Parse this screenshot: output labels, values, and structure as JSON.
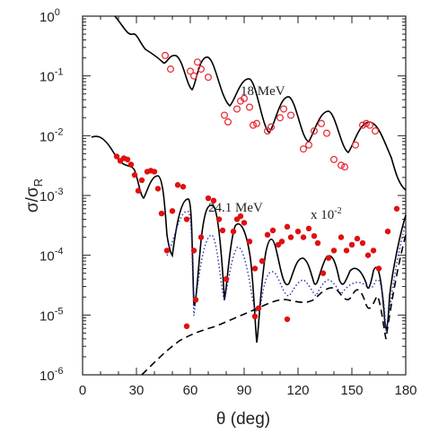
{
  "chart_data": {
    "type": "scatter",
    "xlabel": "θ (deg)",
    "ylabel": "σ/σ",
    "ylabel_sub": "R",
    "xlim": [
      0,
      180
    ],
    "ylim": [
      1e-06,
      1
    ],
    "yscale": "log",
    "grid": false,
    "x_ticks": [
      "0",
      "30",
      "60",
      "90",
      "120",
      "150",
      "180"
    ],
    "y_ticks": [
      {
        "base": "10",
        "exp": "0"
      },
      {
        "base": "10",
        "exp": "-1"
      },
      {
        "base": "10",
        "exp": "-2"
      },
      {
        "base": "10",
        "exp": "-3"
      },
      {
        "base": "10",
        "exp": "-4"
      },
      {
        "base": "10",
        "exp": "-5"
      },
      {
        "base": "10",
        "exp": "-6"
      }
    ],
    "annotations": {
      "upper": "18 MeV",
      "lower": "24.1 MeV",
      "scale": "x 10",
      "scale_exp": "-2"
    },
    "colors": {
      "open_points": "#e8303a",
      "filled_points": "#e01010",
      "fit": "#000000",
      "dotted": "#2233aa"
    },
    "series": [
      {
        "marker": "open-circle",
        "x": [
          46,
          49,
          60,
          62,
          64,
          66,
          70,
          79,
          81,
          86,
          88,
          90,
          93,
          95,
          97,
          103,
          105,
          110,
          112,
          116,
          123,
          126,
          129,
          133,
          136,
          140,
          144,
          146,
          152,
          156,
          158,
          160,
          163
        ],
        "y": [
          0.22,
          0.13,
          0.12,
          0.1,
          0.17,
          0.13,
          0.095,
          0.022,
          0.017,
          0.028,
          0.038,
          0.042,
          0.03,
          0.015,
          0.016,
          0.012,
          0.014,
          0.02,
          0.028,
          0.022,
          0.006,
          0.007,
          0.012,
          0.016,
          0.011,
          0.004,
          0.0032,
          0.003,
          0.007,
          0.015,
          0.016,
          0.015,
          0.012
        ]
      },
      {
        "marker": "filled-circle",
        "x": [
          19,
          21,
          23,
          25,
          27,
          29,
          31,
          33,
          36,
          38,
          40,
          42,
          44,
          47,
          50,
          53,
          56,
          58,
          62,
          63,
          66,
          70,
          73,
          76,
          78,
          80,
          84,
          86,
          88,
          90,
          93,
          96,
          98,
          100,
          103,
          106,
          109,
          111,
          114,
          116,
          120,
          123,
          126,
          129,
          131,
          134,
          137,
          140,
          144,
          147,
          150,
          153,
          156,
          159,
          162,
          165,
          170,
          175
        ],
        "y": [
          0.0045,
          0.0038,
          0.0042,
          0.004,
          0.0033,
          0.0022,
          0.0012,
          0.0018,
          0.0025,
          0.0026,
          0.0025,
          0.0013,
          0.0005,
          0.00012,
          0.00055,
          0.0015,
          0.0014,
          0.0004,
          0.00012,
          1.8e-05,
          0.0002,
          0.0009,
          0.00082,
          0.0004,
          0.00026,
          4e-05,
          0.00025,
          0.0004,
          0.00045,
          0.00035,
          0.00017,
          6e-05,
          1.3e-05,
          8e-05,
          0.00022,
          0.00026,
          0.00015,
          0.00017,
          0.0003,
          0.0002,
          0.00025,
          0.0002,
          0.00028,
          0.00021,
          0.00016,
          5e-05,
          9e-05,
          0.00012,
          0.0002,
          0.00012,
          0.00015,
          0.00019,
          0.00016,
          0.0001,
          0.00012,
          6e-05,
          0.00025,
          0.0006
        ]
      },
      {
        "marker": "filled-circle",
        "x": [
          58,
          96,
          114
        ],
        "y": [
          6.5e-06,
          9.5e-06,
          8.5e-06
        ]
      }
    ]
  }
}
